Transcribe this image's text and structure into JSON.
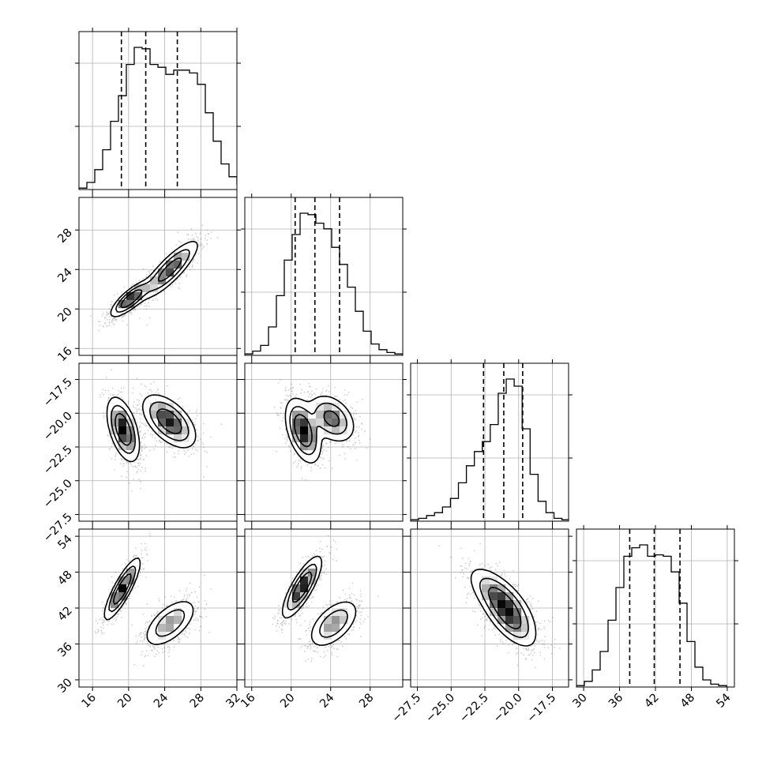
{
  "chart_data": {
    "type": "corner",
    "title": "",
    "colors": {
      "line": "#000000",
      "grid": "#b0b0b0",
      "points": "#000000",
      "background": "#ffffff"
    },
    "grid": true,
    "parameters": [
      {
        "range": [
          14.5,
          32.0
        ],
        "ticks": [
          16,
          20,
          24,
          28,
          32
        ],
        "tick_labels": [
          "16",
          "20",
          "24",
          "28",
          "32"
        ],
        "quantiles": [
          19.2,
          21.9,
          25.4
        ]
      },
      {
        "range": [
          15.3,
          31.3
        ],
        "ticks": [
          16,
          20,
          24,
          28
        ],
        "tick_labels": [
          "16",
          "20",
          "24",
          "28"
        ],
        "quantiles": [
          20.4,
          22.4,
          24.9
        ]
      },
      {
        "range": [
          -28.0,
          -16.3
        ],
        "ticks": [
          -27.5,
          -25.0,
          -22.5,
          -20.0,
          -17.5
        ],
        "tick_labels": [
          "−27.5",
          "−25.0",
          "−22.5",
          "−20.0",
          "−17.5"
        ],
        "quantiles": [
          -22.6,
          -21.1,
          -19.7
        ]
      },
      {
        "range": [
          28.8,
          55.2
        ],
        "ticks": [
          30,
          36,
          42,
          48,
          54
        ],
        "tick_labels": [
          "30",
          "36",
          "42",
          "48",
          "54"
        ],
        "quantiles": [
          37.7,
          41.8,
          46.1
        ]
      }
    ],
    "histograms": [
      {
        "edges_start": 14.5,
        "bin_width": 0.875,
        "counts": [
          0.01,
          0.05,
          0.14,
          0.28,
          0.48,
          0.66,
          0.88,
          1.0,
          0.99,
          0.88,
          0.86,
          0.81,
          0.84,
          0.84,
          0.82,
          0.74,
          0.54,
          0.34,
          0.18,
          0.09,
          0.04,
          0.02,
          0.01
        ]
      },
      {
        "edges_start": 15.3,
        "bin_width": 0.8,
        "counts": [
          0.01,
          0.03,
          0.07,
          0.2,
          0.42,
          0.67,
          0.85,
          1.0,
          0.99,
          0.93,
          0.89,
          0.76,
          0.64,
          0.48,
          0.31,
          0.17,
          0.08,
          0.04,
          0.02,
          0.01
        ]
      },
      {
        "edges_start": -28.0,
        "bin_width": 0.59,
        "counts": [
          0.01,
          0.02,
          0.04,
          0.06,
          0.1,
          0.16,
          0.27,
          0.39,
          0.49,
          0.56,
          0.68,
          0.9,
          1.0,
          0.95,
          0.65,
          0.33,
          0.14,
          0.06,
          0.02,
          0.01
        ]
      },
      {
        "edges_start": 28.8,
        "bin_width": 1.32,
        "counts": [
          0.01,
          0.04,
          0.12,
          0.25,
          0.47,
          0.7,
          0.92,
          0.98,
          1.0,
          0.92,
          0.93,
          0.92,
          0.81,
          0.59,
          0.32,
          0.14,
          0.05,
          0.02,
          0.01
        ]
      }
    ],
    "joint": [
      {
        "row": 1,
        "col": 0,
        "components": [
          {
            "center": [
              20.2,
              21.0
            ],
            "spread": [
              1.1,
              0.9
            ],
            "rho": 0.8,
            "weight": 1.2
          },
          {
            "center": [
              24.6,
              24.0
            ],
            "spread": [
              1.6,
              1.5
            ],
            "rho": 0.85,
            "weight": 0.9
          }
        ]
      },
      {
        "row": 2,
        "col": 0,
        "components": [
          {
            "center": [
              19.4,
              -21.2
            ],
            "spread": [
              0.9,
              1.2
            ],
            "rho": -0.5,
            "weight": 1.0
          },
          {
            "center": [
              24.5,
              -20.6
            ],
            "spread": [
              1.5,
              1.0
            ],
            "rho": -0.55,
            "weight": 0.9
          }
        ]
      },
      {
        "row": 2,
        "col": 1,
        "components": [
          {
            "center": [
              21.2,
              -21.3
            ],
            "spread": [
              0.9,
              1.2
            ],
            "rho": -0.45,
            "weight": 1.0
          },
          {
            "center": [
              24.1,
              -20.4
            ],
            "spread": [
              1.2,
              0.9
            ],
            "rho": -0.35,
            "weight": 0.8
          }
        ]
      },
      {
        "row": 3,
        "col": 0,
        "components": [
          {
            "center": [
              19.3,
              45.2
            ],
            "spread": [
              1.0,
              2.6
            ],
            "rho": 0.85,
            "weight": 1.0
          },
          {
            "center": [
              24.6,
              39.5
            ],
            "spread": [
              1.5,
              2.1
            ],
            "rho": 0.6,
            "weight": 0.9
          }
        ]
      },
      {
        "row": 3,
        "col": 1,
        "components": [
          {
            "center": [
              21.1,
              45.5
            ],
            "spread": [
              1.0,
              2.6
            ],
            "rho": 0.8,
            "weight": 1.0
          },
          {
            "center": [
              24.3,
              39.4
            ],
            "spread": [
              1.3,
              2.1
            ],
            "rho": 0.55,
            "weight": 0.85
          }
        ]
      },
      {
        "row": 3,
        "col": 2,
        "components": [
          {
            "center": [
              -21.3,
              43.5
            ],
            "spread": [
              1.2,
              2.7
            ],
            "rho": -0.7,
            "weight": 1.0
          },
          {
            "center": [
              -20.6,
              39.8
            ],
            "spread": [
              1.0,
              2.4
            ],
            "rho": -0.65,
            "weight": 0.8
          }
        ]
      }
    ]
  }
}
